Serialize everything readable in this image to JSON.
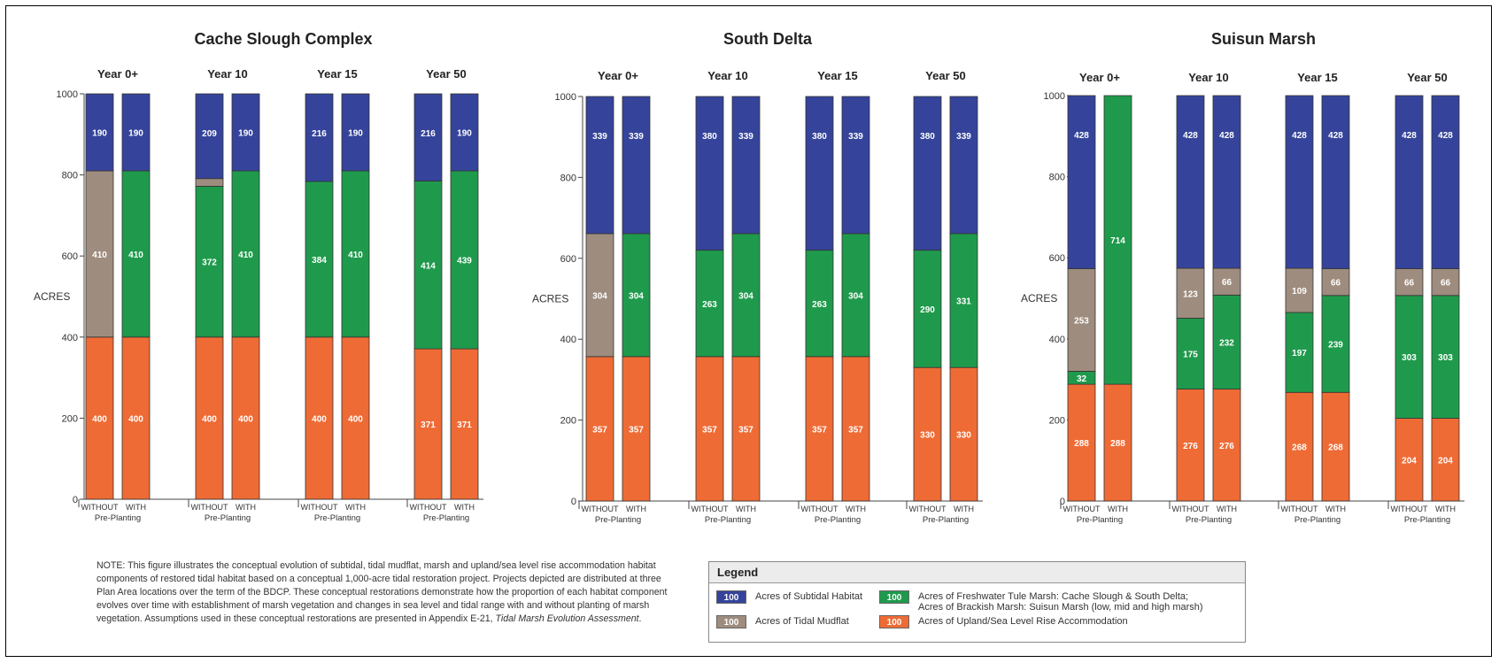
{
  "colors": {
    "subtidal": "#35449a",
    "mudflat": "#9e8c7e",
    "marsh": "#1f9a4c",
    "upland": "#ef6b35"
  },
  "chart_data": [
    {
      "type": "bar",
      "stacked": true,
      "title": "Cache Slough Complex",
      "ylabel": "ACRES",
      "ylim": [
        0,
        1000
      ],
      "yticks": [
        0,
        200,
        400,
        600,
        800,
        1000
      ],
      "bar_labels": [
        "WITHOUT",
        "WITH"
      ],
      "group_sublabel": "Pre-Planting",
      "groups": [
        {
          "label": "Year 0+",
          "bars": [
            {
              "upland": 400,
              "marsh": null,
              "mudflat": 410,
              "subtidal": 190
            },
            {
              "upland": 400,
              "marsh": 410,
              "mudflat": null,
              "subtidal": 190
            }
          ]
        },
        {
          "label": "Year 10",
          "bars": [
            {
              "upland": 400,
              "marsh": 372,
              "mudflat": 19,
              "subtidal": 209
            },
            {
              "upland": 400,
              "marsh": 410,
              "mudflat": null,
              "subtidal": 190
            }
          ]
        },
        {
          "label": "Year 15",
          "bars": [
            {
              "upland": 400,
              "marsh": 384,
              "mudflat": null,
              "subtidal": 216
            },
            {
              "upland": 400,
              "marsh": 410,
              "mudflat": null,
              "subtidal": 190
            }
          ]
        },
        {
          "label": "Year 50",
          "bars": [
            {
              "upland": 371,
              "marsh": 414,
              "mudflat": null,
              "subtidal": 216
            },
            {
              "upland": 371,
              "marsh": 439,
              "mudflat": null,
              "subtidal": 190
            }
          ]
        }
      ]
    },
    {
      "type": "bar",
      "stacked": true,
      "title": "South Delta",
      "ylabel": "ACRES",
      "ylim": [
        0,
        1000
      ],
      "yticks": [
        0,
        200,
        400,
        600,
        800,
        1000
      ],
      "bar_labels": [
        "WITHOUT",
        "WITH"
      ],
      "group_sublabel": "Pre-Planting",
      "groups": [
        {
          "label": "Year 0+",
          "bars": [
            {
              "upland": 357,
              "marsh": null,
              "mudflat": 304,
              "subtidal": 339
            },
            {
              "upland": 357,
              "marsh": 304,
              "mudflat": null,
              "subtidal": 339
            }
          ]
        },
        {
          "label": "Year 10",
          "bars": [
            {
              "upland": 357,
              "marsh": 263,
              "mudflat": null,
              "subtidal": 380
            },
            {
              "upland": 357,
              "marsh": 304,
              "mudflat": null,
              "subtidal": 339
            }
          ]
        },
        {
          "label": "Year 15",
          "bars": [
            {
              "upland": 357,
              "marsh": 263,
              "mudflat": null,
              "subtidal": 380
            },
            {
              "upland": 357,
              "marsh": 304,
              "mudflat": null,
              "subtidal": 339
            }
          ]
        },
        {
          "label": "Year 50",
          "bars": [
            {
              "upland": 330,
              "marsh": 290,
              "mudflat": null,
              "subtidal": 380
            },
            {
              "upland": 330,
              "marsh": 331,
              "mudflat": null,
              "subtidal": 339
            }
          ]
        }
      ]
    },
    {
      "type": "bar",
      "stacked": true,
      "title": "Suisun Marsh",
      "ylabel": "ACRES",
      "ylim": [
        0,
        1000
      ],
      "yticks": [
        0,
        200,
        400,
        600,
        800,
        1000
      ],
      "bar_labels": [
        "WITHOUT",
        "WITH"
      ],
      "group_sublabel": "Pre-Planting",
      "groups": [
        {
          "label": "Year 0+",
          "bars": [
            {
              "upland": 288,
              "marsh": 32,
              "mudflat": 253,
              "subtidal": 428
            },
            {
              "upland": 288,
              "marsh": 714,
              "mudflat": null,
              "subtidal": null
            }
          ]
        },
        {
          "label": "Year 10",
          "bars": [
            {
              "upland": 276,
              "marsh": 175,
              "mudflat": 123,
              "subtidal": 428
            },
            {
              "upland": 276,
              "marsh": 232,
              "mudflat": 66,
              "subtidal": 428
            }
          ]
        },
        {
          "label": "Year 15",
          "bars": [
            {
              "upland": 268,
              "marsh": 197,
              "mudflat": 109,
              "subtidal": 428
            },
            {
              "upland": 268,
              "marsh": 239,
              "mudflat": 66,
              "subtidal": 428
            }
          ]
        },
        {
          "label": "Year 50",
          "bars": [
            {
              "upland": 204,
              "marsh": 303,
              "mudflat": 66,
              "subtidal": 428
            },
            {
              "upland": 204,
              "marsh": 303,
              "mudflat": 66,
              "subtidal": 428
            }
          ]
        }
      ]
    }
  ],
  "note": {
    "text": "NOTE: This figure illustrates the conceptual evolution of subtidal, tidal mudflat, marsh and upland/sea level rise accommodation habitat components of restored tidal habitat based on a conceptual 1,000-acre tidal restoration project. Projects depicted are distributed at three Plan Area locations over the term of the BDCP. These conceptual restorations demonstrate how the proportion of each habitat component evolves over time with establishment of marsh vegetation and changes in sea level and tidal range with and without planting of marsh vegetation. Assumptions used in these conceptual restorations are presented in Appendix E-21, ",
    "italic": "Tidal Marsh Evolution Assessment",
    "end": "."
  },
  "legend": {
    "title": "Legend",
    "swatch_text": "100",
    "items": [
      {
        "key": "subtidal",
        "label": "Acres of Subtidal Habitat"
      },
      {
        "key": "mudflat",
        "label": "Acres of Tidal Mudflat"
      },
      {
        "key": "marsh",
        "label": "Acres of Freshwater Tule Marsh: Cache Slough & South Delta;",
        "label2": "Acres of Brackish Marsh: Suisun Marsh (low, mid and high marsh)"
      },
      {
        "key": "upland",
        "label": "Acres of Upland/Sea Level Rise Accommodation"
      }
    ]
  }
}
